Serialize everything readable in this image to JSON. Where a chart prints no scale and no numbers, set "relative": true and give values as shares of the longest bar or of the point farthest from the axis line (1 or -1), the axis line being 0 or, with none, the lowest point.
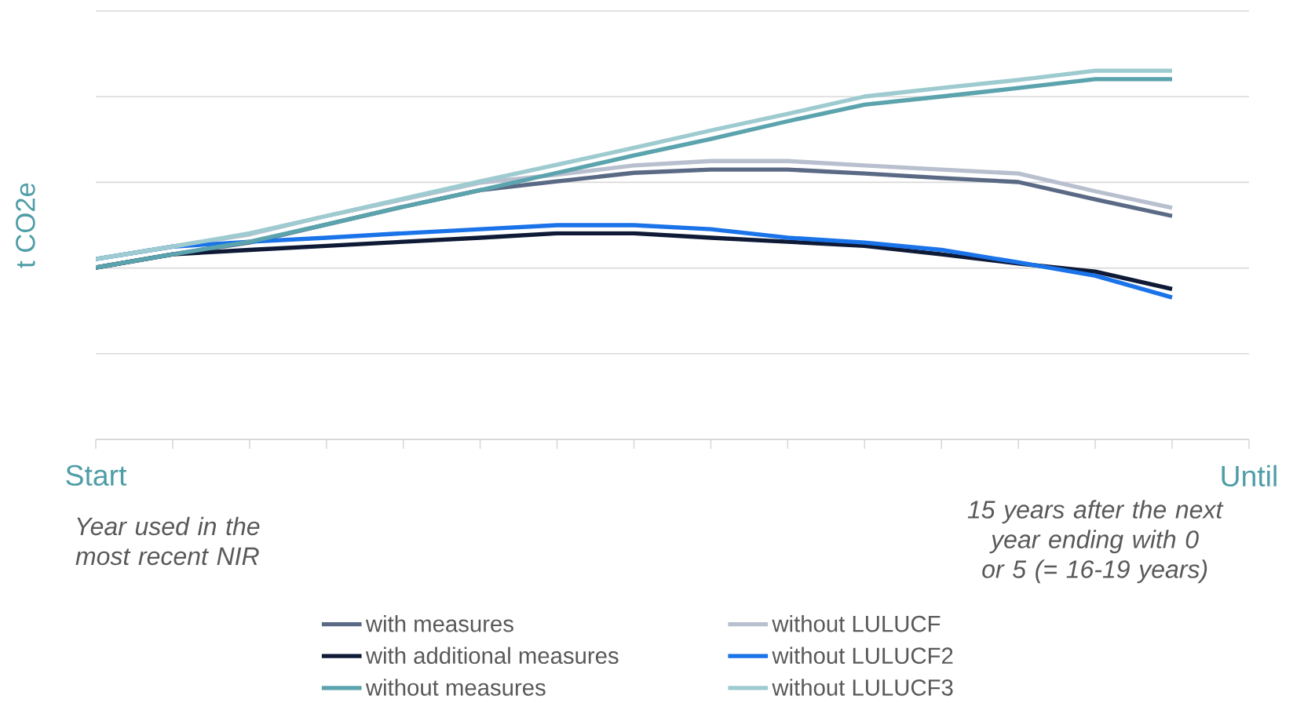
{
  "chart_data": {
    "type": "line",
    "relative": true,
    "ylabel": "t CO2e",
    "categories": [
      "Start",
      null,
      null,
      null,
      null,
      null,
      null,
      null,
      null,
      null,
      null,
      null,
      null,
      null,
      null,
      "Until"
    ],
    "series": [
      {
        "name": "with measures",
        "color": "#5a6a85",
        "values": [
          0.466,
          0.502,
          0.534,
          0.583,
          0.631,
          0.676,
          0.7,
          0.723,
          0.732,
          0.732,
          0.721,
          0.709,
          0.698,
          0.651,
          0.606,
          null
        ]
      },
      {
        "name": "without LULUCF",
        "color": "#b8bfcf",
        "values": [
          0.489,
          0.523,
          0.556,
          0.606,
          0.651,
          0.696,
          0.718,
          0.743,
          0.755,
          0.755,
          0.743,
          0.732,
          0.721,
          0.673,
          0.628,
          null
        ]
      },
      {
        "name": "with additional measures",
        "color": "#0e1a36",
        "values": [
          0.466,
          0.502,
          0.514,
          0.525,
          0.536,
          0.547,
          0.559,
          0.559,
          0.547,
          0.536,
          0.525,
          0.502,
          0.477,
          0.455,
          0.408,
          null
        ]
      },
      {
        "name": "without LULUCF2",
        "color": "#1a73e8",
        "values": [
          0.489,
          0.523,
          0.536,
          0.547,
          0.559,
          0.57,
          0.581,
          0.581,
          0.57,
          0.547,
          0.534,
          0.514,
          0.48,
          0.444,
          0.385,
          null
        ]
      },
      {
        "name": "without measures",
        "color": "#5ba3ad",
        "values": [
          0.466,
          0.502,
          0.536,
          0.583,
          0.631,
          0.676,
          0.723,
          0.77,
          0.815,
          0.863,
          0.908,
          0.93,
          0.953,
          0.977,
          0.977,
          null
        ]
      },
      {
        "name": "without LULUCF3",
        "color": "#9ecbd0",
        "values": [
          0.489,
          0.523,
          0.559,
          0.606,
          0.653,
          0.7,
          0.745,
          0.791,
          0.838,
          0.883,
          0.93,
          0.953,
          0.975,
          1,
          1,
          null
        ]
      }
    ],
    "annotations": [
      "Year used in the most recent NIR",
      "15 years after the next year ending with 0 or 5 (= 16-19 years)"
    ],
    "grid": "y",
    "legend": "bottom",
    "line_style": "solid",
    "marker": "none"
  }
}
